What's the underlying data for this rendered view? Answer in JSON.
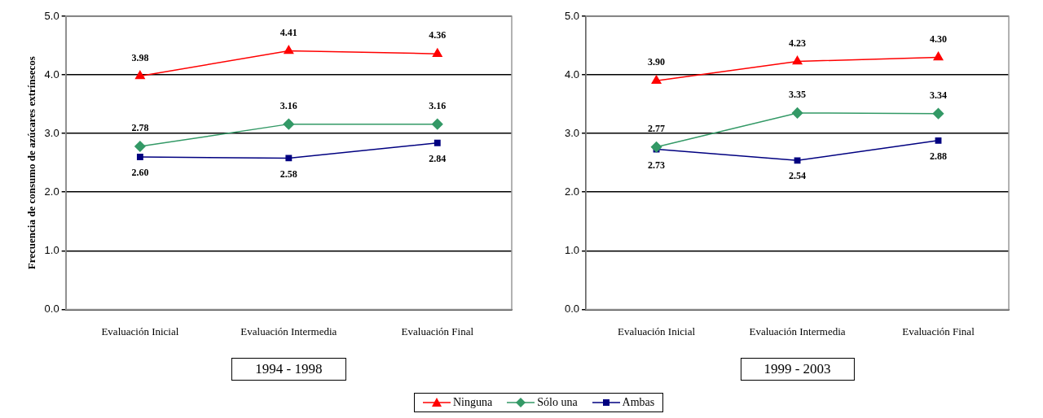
{
  "chart_data": [
    {
      "type": "line",
      "categories": [
        "Evaluación Inicial",
        "Evaluación Intermedia",
        "Evaluación Final"
      ],
      "ylabel": "Frecuencia de consumo de azúcares extrínsecos",
      "xlabel": "1994 - 1998",
      "ylim": [
        0,
        5
      ],
      "yticks": [
        {
          "value": 0,
          "label": "0.0"
        },
        {
          "value": 1,
          "label": "1.0"
        },
        {
          "value": 2,
          "label": "2.0"
        },
        {
          "value": 3,
          "label": "3.0"
        },
        {
          "value": 4,
          "label": "4.0"
        },
        {
          "value": 5,
          "label": "5.0"
        }
      ],
      "grid": "y",
      "legend": "bottom",
      "series": [
        {
          "name": "Ninguna",
          "color": "#ff0000",
          "marker": "triangle",
          "values": [
            3.98,
            4.41,
            4.36
          ],
          "value_labels": [
            "3.98",
            "4.41",
            "4.36"
          ]
        },
        {
          "name": "Sólo una",
          "color": "#339966",
          "marker": "diamond",
          "values": [
            2.78,
            3.16,
            3.16
          ],
          "value_labels": [
            "2.78",
            "3.16",
            "3.16"
          ]
        },
        {
          "name": "Ambas",
          "color": "#000080",
          "marker": "square",
          "values": [
            2.6,
            2.58,
            2.84
          ],
          "value_labels": [
            "2.60",
            "2.58",
            "2.84"
          ]
        }
      ]
    },
    {
      "type": "line",
      "categories": [
        "Evaluación Inicial",
        "Evaluación Intermedia",
        "Evaluación Final"
      ],
      "xlabel": "1999 - 2003",
      "ylim": [
        0,
        5
      ],
      "yticks": [
        {
          "value": 0,
          "label": "0.0"
        },
        {
          "value": 1,
          "label": "1.0"
        },
        {
          "value": 2,
          "label": "2.0"
        },
        {
          "value": 3,
          "label": "3.0"
        },
        {
          "value": 4,
          "label": "4.0"
        },
        {
          "value": 5,
          "label": "5.0"
        }
      ],
      "grid": "y",
      "series": [
        {
          "color": "#ff0000",
          "marker": "triangle",
          "values": [
            3.9,
            4.23,
            4.3
          ],
          "value_labels": [
            "3.90",
            "4.23",
            "4.30"
          ]
        },
        {
          "color": "#339966",
          "marker": "diamond",
          "values": [
            2.77,
            3.35,
            3.34
          ],
          "value_labels": [
            "2.77",
            "3.35",
            "3.34"
          ]
        },
        {
          "color": "#000080",
          "marker": "square",
          "values": [
            2.73,
            2.54,
            2.88
          ],
          "value_labels": [
            "2.73",
            "2.54",
            "2.88"
          ]
        }
      ]
    }
  ]
}
